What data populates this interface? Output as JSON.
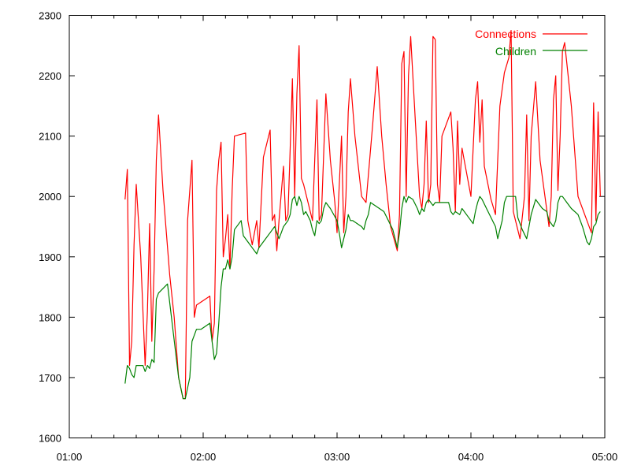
{
  "chart_data": {
    "type": "line",
    "title": "",
    "xlabel": "",
    "ylabel": "",
    "x_unit": "time (hours:minutes)",
    "xlim": [
      "01:00",
      "05:00"
    ],
    "ylim": [
      1600,
      2300
    ],
    "x_ticks": [
      "01:00",
      "02:00",
      "03:00",
      "04:00",
      "05:00"
    ],
    "y_ticks": [
      1600,
      1700,
      1800,
      1900,
      2000,
      2100,
      2200,
      2300
    ],
    "grid": false,
    "legend_position": "top-right",
    "series": [
      {
        "name": "Connections",
        "color": "#ff0000",
        "points": [
          [
            "01:25",
            1995
          ],
          [
            "01:26",
            2045
          ],
          [
            "01:27",
            1720
          ],
          [
            "01:28",
            1760
          ],
          [
            "01:29",
            1920
          ],
          [
            "01:30",
            2020
          ],
          [
            "01:32",
            1900
          ],
          [
            "01:34",
            1720
          ],
          [
            "01:35",
            1810
          ],
          [
            "01:36",
            1955
          ],
          [
            "01:37",
            1760
          ],
          [
            "01:38",
            1880
          ],
          [
            "01:39",
            2060
          ],
          [
            "01:40",
            2135
          ],
          [
            "01:42",
            2010
          ],
          [
            "01:45",
            1870
          ],
          [
            "01:47",
            1800
          ],
          [
            "01:49",
            1700
          ],
          [
            "01:51",
            1665
          ],
          [
            "01:52",
            1665
          ],
          [
            "01:53",
            1960
          ],
          [
            "01:55",
            2060
          ],
          [
            "01:56",
            1800
          ],
          [
            "01:57",
            1820
          ],
          [
            "02:03",
            1835
          ],
          [
            "02:04",
            1760
          ],
          [
            "02:05",
            1790
          ],
          [
            "02:06",
            2010
          ],
          [
            "02:07",
            2060
          ],
          [
            "02:08",
            2090
          ],
          [
            "02:09",
            1900
          ],
          [
            "02:10",
            1930
          ],
          [
            "02:11",
            1970
          ],
          [
            "02:12",
            1880
          ],
          [
            "02:13",
            2010
          ],
          [
            "02:14",
            2100
          ],
          [
            "02:19",
            2105
          ],
          [
            "02:20",
            1960
          ],
          [
            "02:21",
            1940
          ],
          [
            "02:22",
            1920
          ],
          [
            "02:24",
            1960
          ],
          [
            "02:25",
            1915
          ],
          [
            "02:27",
            2065
          ],
          [
            "02:30",
            2110
          ],
          [
            "02:31",
            1960
          ],
          [
            "02:32",
            1970
          ],
          [
            "02:33",
            1910
          ],
          [
            "02:34",
            1960
          ],
          [
            "02:36",
            2050
          ],
          [
            "02:37",
            1960
          ],
          [
            "02:38",
            1970
          ],
          [
            "02:39",
            2080
          ],
          [
            "02:40",
            2195
          ],
          [
            "02:41",
            2000
          ],
          [
            "02:42",
            2170
          ],
          [
            "02:43",
            2250
          ],
          [
            "02:44",
            2030
          ],
          [
            "02:45",
            2020
          ],
          [
            "02:49",
            1960
          ],
          [
            "02:51",
            2160
          ],
          [
            "02:52",
            1960
          ],
          [
            "02:53",
            1970
          ],
          [
            "02:55",
            2170
          ],
          [
            "02:57",
            2060
          ],
          [
            "02:59",
            1990
          ],
          [
            "03:00",
            1940
          ],
          [
            "03:02",
            2100
          ],
          [
            "03:03",
            1940
          ],
          [
            "03:04",
            2000
          ],
          [
            "03:05",
            2140
          ],
          [
            "03:06",
            2195
          ],
          [
            "03:08",
            2100
          ],
          [
            "03:11",
            2000
          ],
          [
            "03:13",
            1990
          ],
          [
            "03:16",
            2120
          ],
          [
            "03:18",
            2215
          ],
          [
            "03:20",
            2100
          ],
          [
            "03:22",
            2020
          ],
          [
            "03:24",
            1950
          ],
          [
            "03:27",
            1910
          ],
          [
            "03:28",
            1970
          ],
          [
            "03:29",
            2220
          ],
          [
            "03:30",
            2240
          ],
          [
            "03:31",
            2000
          ],
          [
            "03:32",
            2200
          ],
          [
            "03:33",
            2265
          ],
          [
            "03:35",
            2130
          ],
          [
            "03:37",
            2000
          ],
          [
            "03:38",
            1980
          ],
          [
            "03:39",
            2020
          ],
          [
            "03:40",
            2125
          ],
          [
            "03:41",
            1990
          ],
          [
            "03:42",
            2020
          ],
          [
            "03:43",
            2265
          ],
          [
            "03:44",
            2260
          ],
          [
            "03:45",
            2020
          ],
          [
            "03:46",
            1990
          ],
          [
            "03:47",
            2100
          ],
          [
            "03:51",
            2140
          ],
          [
            "03:52",
            2080
          ],
          [
            "03:53",
            1975
          ],
          [
            "03:54",
            2125
          ],
          [
            "03:55",
            2020
          ],
          [
            "03:56",
            2080
          ],
          [
            "03:57",
            2060
          ],
          [
            "04:00",
            2000
          ],
          [
            "04:02",
            2160
          ],
          [
            "04:03",
            2190
          ],
          [
            "04:04",
            2090
          ],
          [
            "04:05",
            2160
          ],
          [
            "04:06",
            2050
          ],
          [
            "04:09",
            1995
          ],
          [
            "04:11",
            1970
          ],
          [
            "04:13",
            2150
          ],
          [
            "04:15",
            2205
          ],
          [
            "04:17",
            2230
          ],
          [
            "04:18",
            2275
          ],
          [
            "04:19",
            1975
          ],
          [
            "04:22",
            1930
          ],
          [
            "04:24",
            2000
          ],
          [
            "04:25",
            2135
          ],
          [
            "04:26",
            1960
          ],
          [
            "04:27",
            2100
          ],
          [
            "04:29",
            2190
          ],
          [
            "04:31",
            2060
          ],
          [
            "04:35",
            1950
          ],
          [
            "04:36",
            2000
          ],
          [
            "04:37",
            2160
          ],
          [
            "04:38",
            2200
          ],
          [
            "04:39",
            2010
          ],
          [
            "04:40",
            2100
          ],
          [
            "04:41",
            2240
          ],
          [
            "04:42",
            2255
          ],
          [
            "04:45",
            2150
          ],
          [
            "04:48",
            2000
          ],
          [
            "04:54",
            1940
          ],
          [
            "04:55",
            2155
          ],
          [
            "04:56",
            1960
          ],
          [
            "04:57",
            2140
          ],
          [
            "04:58",
            2000
          ]
        ]
      },
      {
        "name": "Children",
        "color": "#008000",
        "points": [
          [
            "01:25",
            1690
          ],
          [
            "01:26",
            1720
          ],
          [
            "01:27",
            1715
          ],
          [
            "01:28",
            1705
          ],
          [
            "01:29",
            1700
          ],
          [
            "01:30",
            1720
          ],
          [
            "01:33",
            1720
          ],
          [
            "01:34",
            1710
          ],
          [
            "01:35",
            1720
          ],
          [
            "01:36",
            1715
          ],
          [
            "01:37",
            1730
          ],
          [
            "01:38",
            1725
          ],
          [
            "01:39",
            1830
          ],
          [
            "01:40",
            1840
          ],
          [
            "01:44",
            1855
          ],
          [
            "01:49",
            1700
          ],
          [
            "01:51",
            1665
          ],
          [
            "01:52",
            1665
          ],
          [
            "01:54",
            1700
          ],
          [
            "01:55",
            1760
          ],
          [
            "01:56",
            1770
          ],
          [
            "01:57",
            1780
          ],
          [
            "01:59",
            1780
          ],
          [
            "02:03",
            1790
          ],
          [
            "02:04",
            1760
          ],
          [
            "02:05",
            1730
          ],
          [
            "02:06",
            1740
          ],
          [
            "02:07",
            1790
          ],
          [
            "02:08",
            1850
          ],
          [
            "02:09",
            1880
          ],
          [
            "02:10",
            1880
          ],
          [
            "02:11",
            1895
          ],
          [
            "02:12",
            1880
          ],
          [
            "02:13",
            1900
          ],
          [
            "02:14",
            1945
          ],
          [
            "02:17",
            1960
          ],
          [
            "02:18",
            1935
          ],
          [
            "02:21",
            1920
          ],
          [
            "02:22",
            1915
          ],
          [
            "02:24",
            1905
          ],
          [
            "02:25",
            1915
          ],
          [
            "02:27",
            1925
          ],
          [
            "02:30",
            1940
          ],
          [
            "02:32",
            1950
          ],
          [
            "02:33",
            1940
          ],
          [
            "02:34",
            1930
          ],
          [
            "02:35",
            1940
          ],
          [
            "02:36",
            1950
          ],
          [
            "02:38",
            1960
          ],
          [
            "02:39",
            1970
          ],
          [
            "02:40",
            1995
          ],
          [
            "02:41",
            2000
          ],
          [
            "02:42",
            1985
          ],
          [
            "02:43",
            2000
          ],
          [
            "02:44",
            1990
          ],
          [
            "02:45",
            1970
          ],
          [
            "02:46",
            1975
          ],
          [
            "02:48",
            1960
          ],
          [
            "02:49",
            1945
          ],
          [
            "02:50",
            1935
          ],
          [
            "02:51",
            1960
          ],
          [
            "02:52",
            1955
          ],
          [
            "02:53",
            1960
          ],
          [
            "02:54",
            1980
          ],
          [
            "02:55",
            1990
          ],
          [
            "02:57",
            1980
          ],
          [
            "03:00",
            1960
          ],
          [
            "03:01",
            1940
          ],
          [
            "03:02",
            1915
          ],
          [
            "03:03",
            1930
          ],
          [
            "03:04",
            1945
          ],
          [
            "03:05",
            1970
          ],
          [
            "03:06",
            1960
          ],
          [
            "03:07",
            1960
          ],
          [
            "03:11",
            1950
          ],
          [
            "03:12",
            1945
          ],
          [
            "03:13",
            1960
          ],
          [
            "03:14",
            1970
          ],
          [
            "03:15",
            1990
          ],
          [
            "03:19",
            1980
          ],
          [
            "03:21",
            1975
          ],
          [
            "03:23",
            1960
          ],
          [
            "03:25",
            1945
          ],
          [
            "03:26",
            1930
          ],
          [
            "03:27",
            1915
          ],
          [
            "03:28",
            1940
          ],
          [
            "03:29",
            1980
          ],
          [
            "03:30",
            2000
          ],
          [
            "03:31",
            1990
          ],
          [
            "03:32",
            2000
          ],
          [
            "03:34",
            1995
          ],
          [
            "03:36",
            1980
          ],
          [
            "03:37",
            1970
          ],
          [
            "03:38",
            1980
          ],
          [
            "03:39",
            1975
          ],
          [
            "03:40",
            1990
          ],
          [
            "03:41",
            1995
          ],
          [
            "03:43",
            1985
          ],
          [
            "03:44",
            1990
          ],
          [
            "03:46",
            1990
          ],
          [
            "03:48",
            1990
          ],
          [
            "03:50",
            1990
          ],
          [
            "03:51",
            1975
          ],
          [
            "03:52",
            1970
          ],
          [
            "03:53",
            1975
          ],
          [
            "03:55",
            1970
          ],
          [
            "03:56",
            1980
          ],
          [
            "04:00",
            1960
          ],
          [
            "04:01",
            1955
          ],
          [
            "04:02",
            1975
          ],
          [
            "04:03",
            1990
          ],
          [
            "04:04",
            2000
          ],
          [
            "04:05",
            1995
          ],
          [
            "04:07",
            1980
          ],
          [
            "04:09",
            1965
          ],
          [
            "04:11",
            1950
          ],
          [
            "04:12",
            1930
          ],
          [
            "04:13",
            1945
          ],
          [
            "04:14",
            1960
          ],
          [
            "04:15",
            1990
          ],
          [
            "04:16",
            2000
          ],
          [
            "04:20",
            2000
          ],
          [
            "04:21",
            1965
          ],
          [
            "04:23",
            1945
          ],
          [
            "04:25",
            1930
          ],
          [
            "04:26",
            1950
          ],
          [
            "04:27",
            1970
          ],
          [
            "04:29",
            1995
          ],
          [
            "04:30",
            1990
          ],
          [
            "04:32",
            1980
          ],
          [
            "04:34",
            1975
          ],
          [
            "04:35",
            1960
          ],
          [
            "04:37",
            1950
          ],
          [
            "04:38",
            1960
          ],
          [
            "04:39",
            1990
          ],
          [
            "04:40",
            2000
          ],
          [
            "04:41",
            2000
          ],
          [
            "04:43",
            1990
          ],
          [
            "04:45",
            1980
          ],
          [
            "04:48",
            1970
          ],
          [
            "04:50",
            1950
          ],
          [
            "04:52",
            1925
          ],
          [
            "04:53",
            1920
          ],
          [
            "04:54",
            1930
          ],
          [
            "04:55",
            1950
          ],
          [
            "04:56",
            1955
          ],
          [
            "04:57",
            1970
          ],
          [
            "04:58",
            1975
          ]
        ]
      }
    ]
  }
}
